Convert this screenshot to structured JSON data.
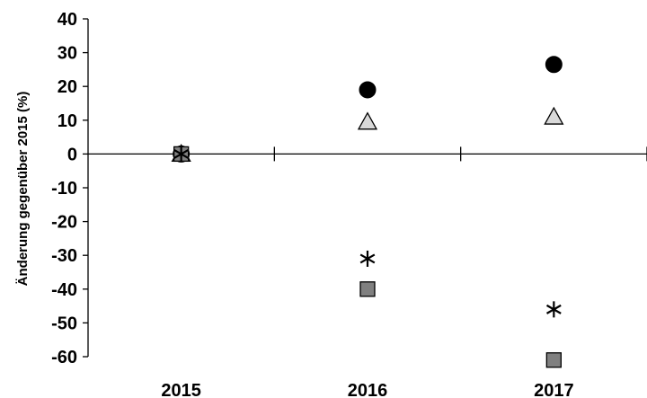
{
  "chart_data": {
    "type": "scatter",
    "title": "",
    "xlabel": "",
    "ylabel": "Änderung gegenüber 2015 (%)",
    "categories": [
      "2015",
      "2016",
      "2017"
    ],
    "ylim": [
      -60,
      40
    ],
    "yticks": [
      40,
      30,
      20,
      10,
      0,
      -10,
      -20,
      -30,
      -40,
      -50,
      -60
    ],
    "grid": false,
    "legend": "none",
    "series": [
      {
        "marker": "circle",
        "color": "#000000",
        "values": [
          0,
          19,
          26.5
        ]
      },
      {
        "marker": "triangle",
        "color": "#d9d9d9",
        "values": [
          0,
          9.5,
          11
        ]
      },
      {
        "marker": "asterisk",
        "color": "#000000",
        "values": [
          0,
          -31,
          -46
        ]
      },
      {
        "marker": "square",
        "color": "#808080",
        "values": [
          0,
          -40,
          -61
        ]
      }
    ]
  }
}
